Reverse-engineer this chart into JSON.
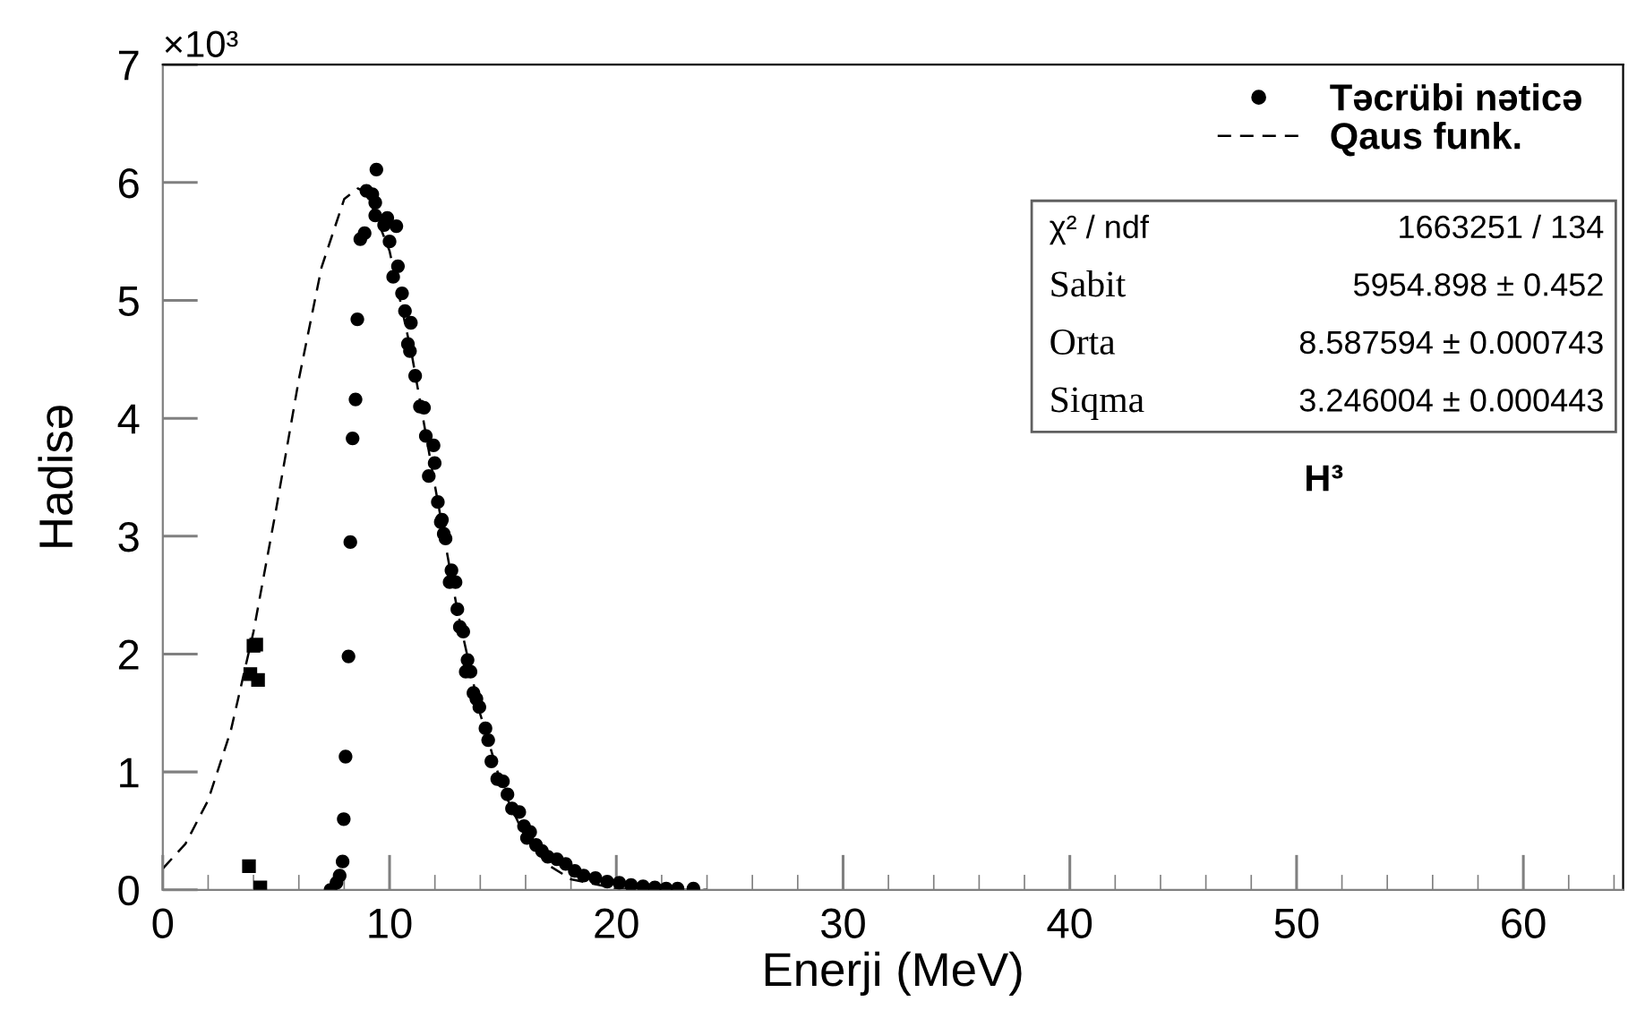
{
  "chart_data": {
    "type": "scatter",
    "xlabel": "Enerji (MeV)",
    "ylabel": "Hadisə",
    "xlim": [
      0,
      64.4
    ],
    "xticks": [
      0,
      10,
      20,
      30,
      40,
      50,
      60
    ],
    "ylim": [
      0,
      7
    ],
    "yticks": [
      0,
      1,
      2,
      3,
      4,
      5,
      6,
      7
    ],
    "legend": "top right",
    "grid": false,
    "series": [
      {
        "name": "Təcrübi nəticə",
        "marker": "circle",
        "color": "#000000",
        "x": [
          7.4,
          7.66,
          7.8,
          7.93,
          7.98,
          8.06,
          8.19,
          8.27,
          8.37,
          8.5,
          8.58,
          8.71,
          8.9,
          8.98,
          9.24,
          9.42,
          9.37,
          9.37,
          9.9,
          9.76,
          10.3,
          10.0,
          10.37,
          10.16,
          10.55,
          10.68,
          10.94,
          10.81,
          10.9,
          11.13,
          11.34,
          11.52,
          11.6,
          11.94,
          11.99,
          11.73,
          12.13,
          12.31,
          12.39,
          12.26,
          12.47,
          12.73,
          12.91,
          12.65,
          12.99,
          13.1,
          13.25,
          13.44,
          13.57,
          13.36,
          13.7,
          13.83,
          13.96,
          14.23,
          14.35,
          14.49,
          14.75,
          15.0,
          15.2,
          15.4,
          15.72,
          15.93,
          16.2,
          16.06,
          16.46,
          16.72,
          16.98,
          17.38,
          17.77,
          18.17,
          18.56,
          19.08,
          19.6,
          20.13,
          20.65,
          21.18,
          21.7,
          22.2,
          22.7,
          23.4
        ],
        "values": [
          0,
          0.06,
          0.12,
          0.24,
          0.6,
          1.13,
          1.98,
          2.95,
          3.83,
          4.16,
          4.84,
          5.52,
          5.57,
          5.93,
          5.9,
          6.11,
          5.83,
          5.72,
          5.7,
          5.64,
          5.63,
          5.5,
          5.29,
          5.2,
          5.06,
          4.91,
          4.81,
          4.63,
          4.57,
          4.36,
          4.1,
          4.09,
          3.85,
          3.77,
          3.62,
          3.51,
          3.29,
          3.14,
          3.02,
          3.12,
          2.98,
          2.71,
          2.61,
          2.61,
          2.38,
          2.23,
          2.19,
          1.95,
          1.85,
          1.85,
          1.67,
          1.62,
          1.55,
          1.37,
          1.27,
          1.09,
          0.94,
          0.92,
          0.81,
          0.69,
          0.66,
          0.54,
          0.49,
          0.44,
          0.38,
          0.33,
          0.28,
          0.26,
          0.22,
          0.16,
          0.12,
          0.1,
          0.07,
          0.06,
          0.04,
          0.03,
          0.02,
          0.01,
          0.01,
          0.01
        ]
      },
      {
        "marker": "square",
        "color": "#000000",
        "x": [
          3.8,
          4.3,
          3.86,
          4.12,
          4.0,
          4.2
        ],
        "values": [
          0.2,
          0.02,
          1.83,
          2.08,
          2.07,
          1.78
        ]
      },
      {
        "name": "Qaus funk.",
        "type": "line",
        "line_style": "dashed",
        "marker": "none",
        "color": "#000000",
        "x": [
          0,
          1,
          2,
          3,
          4,
          5,
          6,
          7,
          8,
          8.6,
          9,
          10,
          11,
          12,
          13,
          14,
          15,
          16,
          17,
          18,
          20,
          22,
          24
        ],
        "values": [
          0.18,
          0.39,
          0.76,
          1.35,
          2.19,
          3.23,
          4.33,
          5.28,
          5.86,
          5.95,
          5.91,
          5.42,
          4.52,
          3.43,
          2.36,
          1.49,
          0.85,
          0.44,
          0.21,
          0.09,
          0.01,
          0,
          0
        ]
      }
    ],
    "annotations": [
      "×10³",
      "χ² / ndf",
      "1663251 / 134",
      "Sabit",
      "5954.898 ± 0.452",
      "Orta",
      "8.587594 ± 0.000743",
      "Siqma",
      "3.246004 ± 0.000443",
      "H³"
    ]
  }
}
